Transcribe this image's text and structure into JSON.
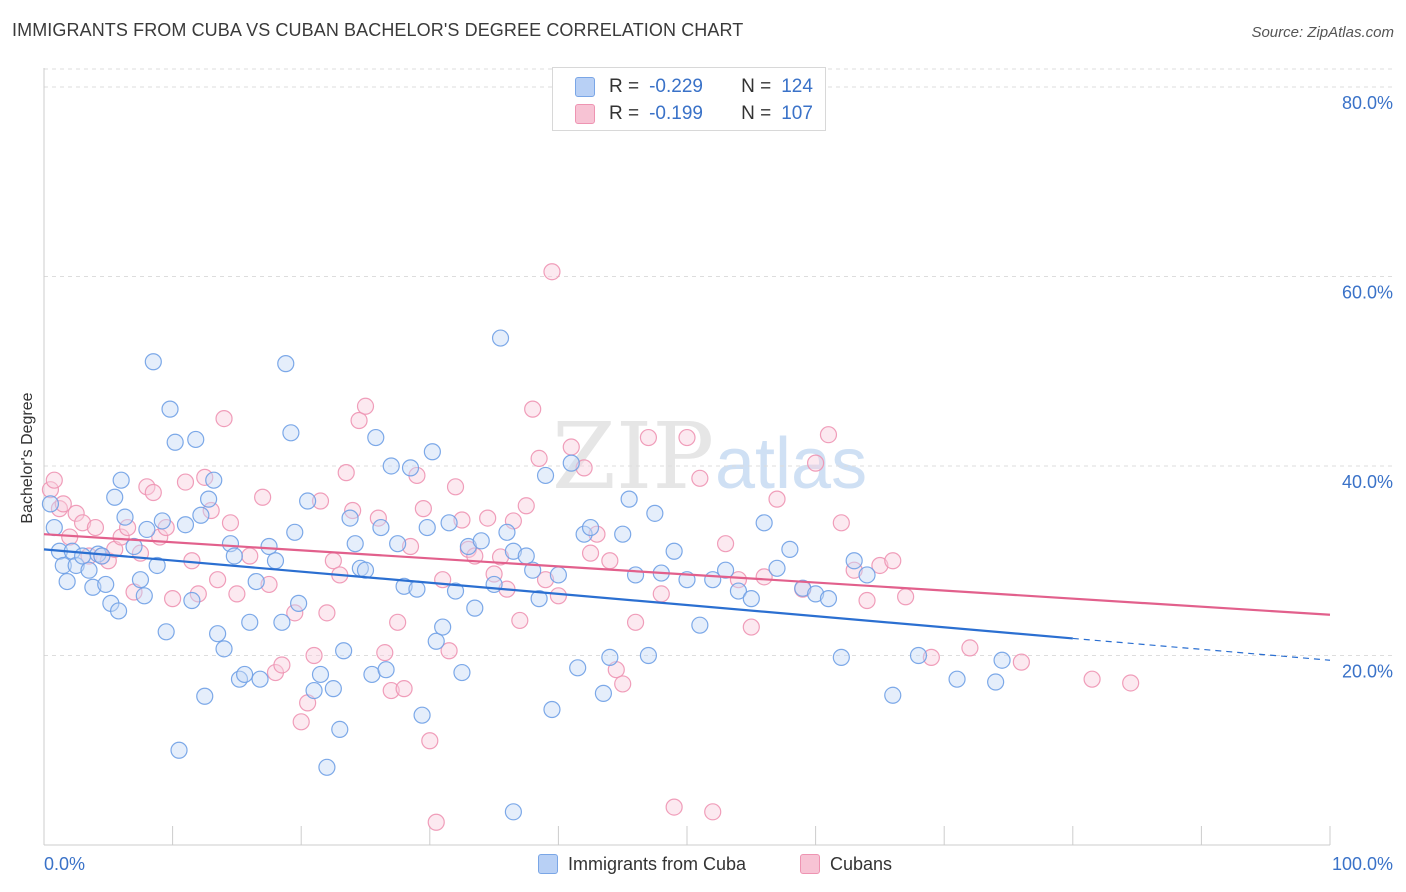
{
  "title": "IMMIGRANTS FROM CUBA VS CUBAN BACHELOR'S DEGREE CORRELATION CHART",
  "source": "Source: ZipAtlas.com",
  "watermark": {
    "zip": "ZIP",
    "atlas": "atlas"
  },
  "legend": [
    {
      "r_label": "R =",
      "r_value": "-0.229",
      "n_label": "N =",
      "n_value": "124"
    },
    {
      "r_label": "R =",
      "r_value": "-0.199",
      "n_label": "N =",
      "n_value": "107"
    }
  ],
  "bottom_legend": [
    "Immigrants from Cuba",
    "Cubans"
  ],
  "colors": {
    "blue": "#6fa0e6",
    "blue_fill": "#c6daf6",
    "blue_line": "#2b6fd1",
    "pink": "#ee94b2",
    "pink_fill": "#f8cfdd",
    "pink_line": "#e2608c",
    "tick_text": "#3a72c8",
    "grid": "#dddddd"
  },
  "chart_data": {
    "type": "scatter",
    "title": "IMMIGRANTS FROM CUBA VS CUBAN BACHELOR'S DEGREE CORRELATION CHART",
    "xlabel": "",
    "ylabel": "Bachelor's Degree",
    "xlim": [
      0,
      100
    ],
    "ylim": [
      0,
      82
    ],
    "x_tick_labels": [
      "0.0%",
      "100.0%"
    ],
    "y_ticks": [
      20,
      40,
      60,
      80
    ],
    "y_tick_labels": [
      "20.0%",
      "40.0%",
      "60.0%",
      "80.0%"
    ],
    "series": [
      {
        "name": "Immigrants from Cuba",
        "color": "blue",
        "r": -0.229,
        "n": 124,
        "trend": {
          "x0": 0,
          "y0": 31.2,
          "x1": 80,
          "y1": 21.8,
          "dash_to_x": 100,
          "dash_to_y": 19.5
        },
        "points": [
          [
            0.5,
            36
          ],
          [
            0.8,
            33.5
          ],
          [
            1.2,
            31
          ],
          [
            1.5,
            29.5
          ],
          [
            1.8,
            27.8
          ],
          [
            2.2,
            31
          ],
          [
            2.5,
            29.5
          ],
          [
            3,
            30.5
          ],
          [
            3.5,
            29
          ],
          [
            3.8,
            27.2
          ],
          [
            4.2,
            30.7
          ],
          [
            4.5,
            30.5
          ],
          [
            4.8,
            27.5
          ],
          [
            5.2,
            25.5
          ],
          [
            5.5,
            36.7
          ],
          [
            5.8,
            24.7
          ],
          [
            6,
            38.5
          ],
          [
            6.3,
            34.6
          ],
          [
            7,
            31.5
          ],
          [
            7.5,
            28
          ],
          [
            7.8,
            26.3
          ],
          [
            8,
            33.3
          ],
          [
            8.5,
            51
          ],
          [
            8.8,
            29.5
          ],
          [
            9.2,
            34.2
          ],
          [
            9.5,
            22.5
          ],
          [
            9.8,
            46
          ],
          [
            10.2,
            42.5
          ],
          [
            10.5,
            10
          ],
          [
            11,
            33.8
          ],
          [
            11.5,
            25.8
          ],
          [
            11.8,
            42.8
          ],
          [
            12.2,
            34.8
          ],
          [
            12.5,
            15.7
          ],
          [
            12.8,
            36.5
          ],
          [
            13.2,
            38.5
          ],
          [
            13.5,
            22.3
          ],
          [
            14,
            20.7
          ],
          [
            14.5,
            31.8
          ],
          [
            14.8,
            30.5
          ],
          [
            15.2,
            17.5
          ],
          [
            15.6,
            18
          ],
          [
            16,
            23.5
          ],
          [
            16.5,
            27.8
          ],
          [
            16.8,
            17.5
          ],
          [
            17.5,
            31.5
          ],
          [
            18,
            30
          ],
          [
            18.5,
            23.5
          ],
          [
            18.8,
            50.8
          ],
          [
            19.2,
            43.5
          ],
          [
            19.5,
            33
          ],
          [
            19.8,
            25.5
          ],
          [
            20.5,
            36.3
          ],
          [
            21,
            16.3
          ],
          [
            21.5,
            18
          ],
          [
            22,
            8.2
          ],
          [
            22.5,
            16.5
          ],
          [
            23,
            12.2
          ],
          [
            23.3,
            20.5
          ],
          [
            23.8,
            34.5
          ],
          [
            24.2,
            31.8
          ],
          [
            24.6,
            29.2
          ],
          [
            25,
            29
          ],
          [
            25.5,
            18
          ],
          [
            25.8,
            43
          ],
          [
            26.2,
            33.5
          ],
          [
            26.6,
            18.5
          ],
          [
            27,
            40
          ],
          [
            27.5,
            31.8
          ],
          [
            28,
            27.3
          ],
          [
            28.5,
            39.8
          ],
          [
            29,
            27
          ],
          [
            29.4,
            13.7
          ],
          [
            29.8,
            33.5
          ],
          [
            30.2,
            41.5
          ],
          [
            30.5,
            21.5
          ],
          [
            31,
            23
          ],
          [
            31.5,
            34
          ],
          [
            32,
            26.8
          ],
          [
            32.5,
            18.2
          ],
          [
            33,
            31.5
          ],
          [
            33.5,
            25
          ],
          [
            34,
            32.1
          ],
          [
            35,
            27.5
          ],
          [
            35.5,
            53.5
          ],
          [
            36,
            33
          ],
          [
            36.5,
            31
          ],
          [
            37.5,
            30.5
          ],
          [
            38,
            29
          ],
          [
            38.5,
            26
          ],
          [
            39,
            39
          ],
          [
            39.5,
            14.3
          ],
          [
            40,
            28.5
          ],
          [
            41,
            40.3
          ],
          [
            41.5,
            18.7
          ],
          [
            42,
            32.8
          ],
          [
            42.5,
            33.5
          ],
          [
            43.5,
            16
          ],
          [
            44,
            19.8
          ],
          [
            45,
            32.8
          ],
          [
            45.5,
            36.5
          ],
          [
            46,
            28.5
          ],
          [
            47,
            20
          ],
          [
            47.5,
            35
          ],
          [
            48,
            28.7
          ],
          [
            49,
            31
          ],
          [
            50,
            28
          ],
          [
            51,
            23.2
          ],
          [
            52,
            28
          ],
          [
            53,
            29
          ],
          [
            54,
            26.8
          ],
          [
            55,
            26
          ],
          [
            56,
            34
          ],
          [
            57,
            29.2
          ],
          [
            58,
            31.2
          ],
          [
            59,
            27.1
          ],
          [
            60,
            26.5
          ],
          [
            61,
            26
          ],
          [
            62,
            19.8
          ],
          [
            63,
            30
          ],
          [
            64,
            28.5
          ],
          [
            66,
            15.8
          ],
          [
            68,
            20
          ],
          [
            71,
            17.5
          ],
          [
            74,
            17.2
          ],
          [
            74.5,
            19.5
          ],
          [
            36.5,
            3.5
          ]
        ]
      },
      {
        "name": "Cubans",
        "color": "pink",
        "r": -0.199,
        "n": 107,
        "trend": {
          "x0": 0,
          "y0": 32.8,
          "x1": 100,
          "y1": 24.3
        },
        "points": [
          [
            0.5,
            37.5
          ],
          [
            0.8,
            38.5
          ],
          [
            1.2,
            35.5
          ],
          [
            1.5,
            36
          ],
          [
            2,
            32.5
          ],
          [
            2.5,
            35
          ],
          [
            3,
            34
          ],
          [
            3.5,
            30.5
          ],
          [
            4,
            33.5
          ],
          [
            4.5,
            30.5
          ],
          [
            5,
            30
          ],
          [
            5.5,
            31.2
          ],
          [
            6,
            32.5
          ],
          [
            6.5,
            33.5
          ],
          [
            7,
            26.7
          ],
          [
            7.5,
            30.8
          ],
          [
            8,
            37.8
          ],
          [
            8.5,
            37.2
          ],
          [
            9,
            32.5
          ],
          [
            9.5,
            33.5
          ],
          [
            10,
            26
          ],
          [
            11,
            38.3
          ],
          [
            11.5,
            30
          ],
          [
            12,
            26.5
          ],
          [
            12.5,
            38.8
          ],
          [
            13,
            35.3
          ],
          [
            13.5,
            28
          ],
          [
            14,
            45
          ],
          [
            14.5,
            34
          ],
          [
            15,
            26.5
          ],
          [
            16,
            30.5
          ],
          [
            17,
            36.7
          ],
          [
            17.5,
            27.5
          ],
          [
            18,
            18.2
          ],
          [
            18.5,
            19
          ],
          [
            19.5,
            24.5
          ],
          [
            20,
            13
          ],
          [
            20.5,
            15
          ],
          [
            21,
            20
          ],
          [
            21.5,
            36.3
          ],
          [
            22,
            24.5
          ],
          [
            22.5,
            30
          ],
          [
            23,
            28.5
          ],
          [
            23.5,
            39.3
          ],
          [
            24,
            35.3
          ],
          [
            24.5,
            44.8
          ],
          [
            25,
            46.3
          ],
          [
            26,
            34.5
          ],
          [
            26.5,
            20.3
          ],
          [
            27,
            16.3
          ],
          [
            27.5,
            23.5
          ],
          [
            28,
            16.5
          ],
          [
            28.5,
            31.5
          ],
          [
            29,
            39
          ],
          [
            29.5,
            35.5
          ],
          [
            30,
            11
          ],
          [
            30.5,
            2.4
          ],
          [
            31,
            28
          ],
          [
            31.5,
            20.5
          ],
          [
            32,
            37.8
          ],
          [
            32.5,
            34.3
          ],
          [
            33,
            31.2
          ],
          [
            33.5,
            30.5
          ],
          [
            34.5,
            34.5
          ],
          [
            35,
            28.6
          ],
          [
            35.5,
            30.4
          ],
          [
            36,
            27
          ],
          [
            36.5,
            34.2
          ],
          [
            37,
            23.7
          ],
          [
            37.5,
            35.8
          ],
          [
            38,
            46
          ],
          [
            38.5,
            40.8
          ],
          [
            39,
            28
          ],
          [
            39.5,
            60.5
          ],
          [
            40,
            26.3
          ],
          [
            41,
            42
          ],
          [
            42,
            39.8
          ],
          [
            42.5,
            30.8
          ],
          [
            43,
            32.8
          ],
          [
            44,
            30
          ],
          [
            44.5,
            18.5
          ],
          [
            45,
            17
          ],
          [
            46,
            23.5
          ],
          [
            47,
            43
          ],
          [
            48,
            26.5
          ],
          [
            49,
            4
          ],
          [
            50,
            43
          ],
          [
            51,
            38.7
          ],
          [
            52,
            3.5
          ],
          [
            53,
            31.8
          ],
          [
            54,
            28
          ],
          [
            55,
            23
          ],
          [
            56,
            28.3
          ],
          [
            57,
            36.5
          ],
          [
            59,
            27
          ],
          [
            60,
            40.3
          ],
          [
            61,
            43.3
          ],
          [
            62,
            34
          ],
          [
            63,
            29
          ],
          [
            64,
            25.8
          ],
          [
            65,
            29.5
          ],
          [
            66,
            30
          ],
          [
            67,
            26.2
          ],
          [
            69,
            19.8
          ],
          [
            72,
            20.8
          ],
          [
            76,
            19.3
          ],
          [
            81.5,
            17.5
          ],
          [
            84.5,
            17.1
          ]
        ]
      }
    ]
  }
}
